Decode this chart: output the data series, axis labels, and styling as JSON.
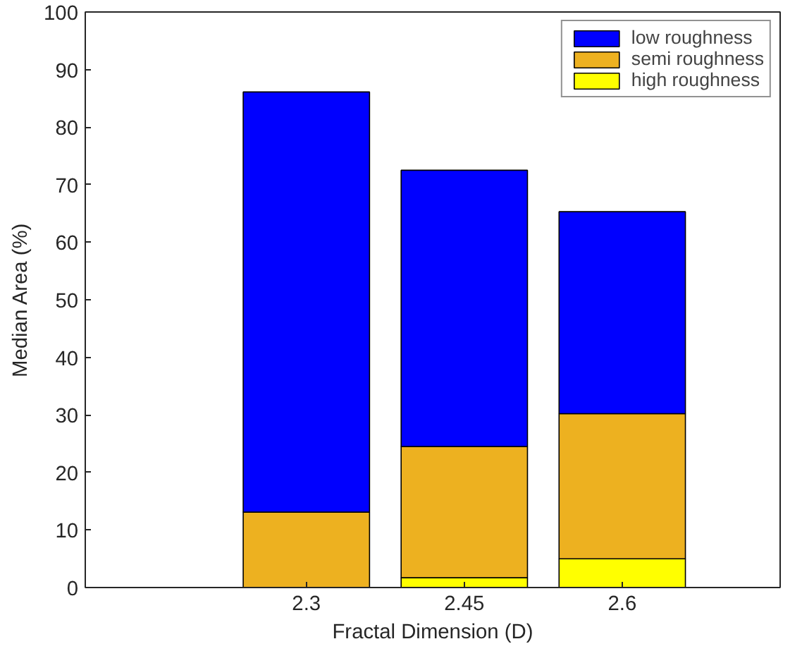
{
  "chart_data": {
    "type": "bar",
    "stacked": true,
    "xlabel": "Fractal Dimension (D)",
    "ylabel": "Median Area (%)",
    "x": [
      2.3,
      2.45,
      2.6
    ],
    "xlim": [
      2.09,
      2.75
    ],
    "xticks": [
      2.3,
      2.45,
      2.6
    ],
    "ylim": [
      0,
      100
    ],
    "yticks": [
      0,
      10,
      20,
      30,
      40,
      50,
      60,
      70,
      80,
      90,
      100
    ],
    "grid": false,
    "legend": "top right",
    "series": [
      {
        "name": "high roughness",
        "color": "#ffff00",
        "values": [
          0,
          1.7,
          5.0
        ]
      },
      {
        "name": "semi roughness",
        "color": "#edb120",
        "values": [
          13.1,
          22.8,
          25.2
        ]
      },
      {
        "name": "low roughness",
        "color": "#0000ff",
        "values": [
          73.0,
          48.0,
          35.1
        ]
      }
    ]
  }
}
